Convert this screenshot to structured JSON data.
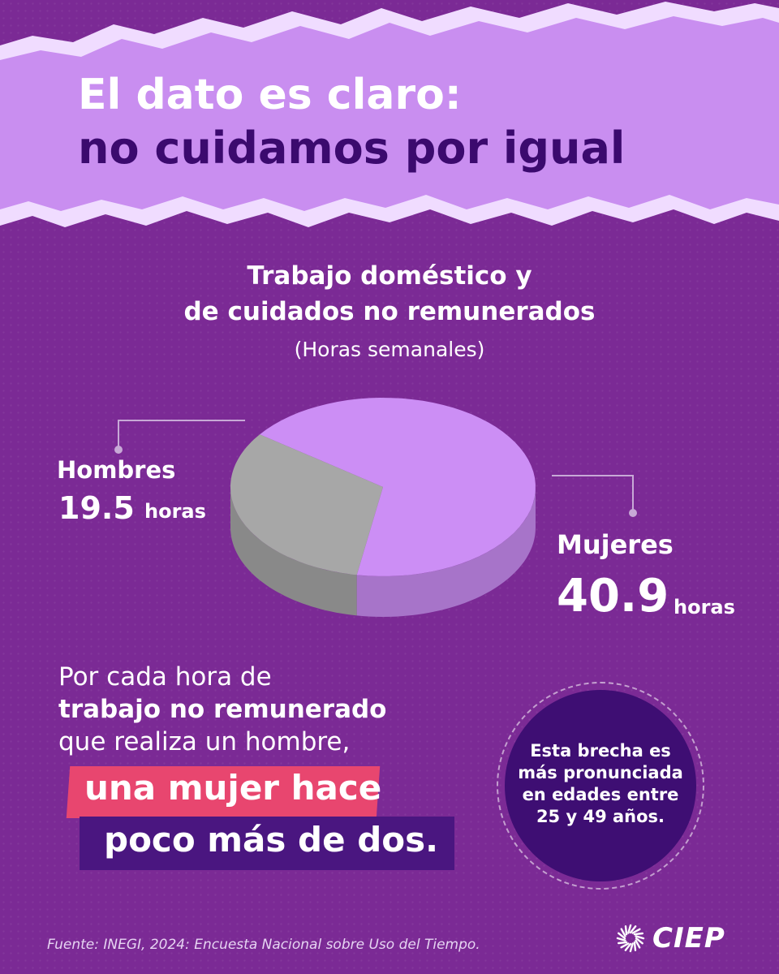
{
  "headline": {
    "line1": "El dato es claro:",
    "line2": "no cuidamos por igual"
  },
  "chart_data": {
    "type": "pie",
    "title_lines": [
      "Trabajo doméstico y",
      "de cuidados no remunerados"
    ],
    "subtitle": "(Horas semanales)",
    "categories": [
      "Hombres",
      "Mujeres"
    ],
    "values": [
      19.5,
      40.9
    ],
    "unit": "horas",
    "colors": [
      "#a7a7a7",
      "#cc8ef5"
    ],
    "labels": {
      "hombres": {
        "name": "Hombres",
        "value": "19.5",
        "unit": "horas"
      },
      "mujeres": {
        "name": "Mujeres",
        "value": "40.9",
        "unit": "horas"
      }
    }
  },
  "paragraph": {
    "line1": "Por cada hora de",
    "line2": "trabajo no remunerado",
    "line3": "que realiza un hombre,"
  },
  "highlight": {
    "pink": "una mujer hace",
    "dark": "poco más de dos."
  },
  "circle": {
    "lines": [
      "Esta brecha es",
      "más pronunciada",
      "en edades entre",
      "25 y 49 años."
    ]
  },
  "footer": {
    "source": "Fuente: INEGI, 2024: Encuesta Nacional sobre Uso del Tiempo.",
    "logo_text": "CIEP"
  },
  "colors": {
    "background": "#7b2a95",
    "paper": "#c98ef0",
    "headline_dark": "#3b0a6e",
    "pink": "#e8466f",
    "dark_band": "#4a1680",
    "circle": "#3e0e73"
  }
}
